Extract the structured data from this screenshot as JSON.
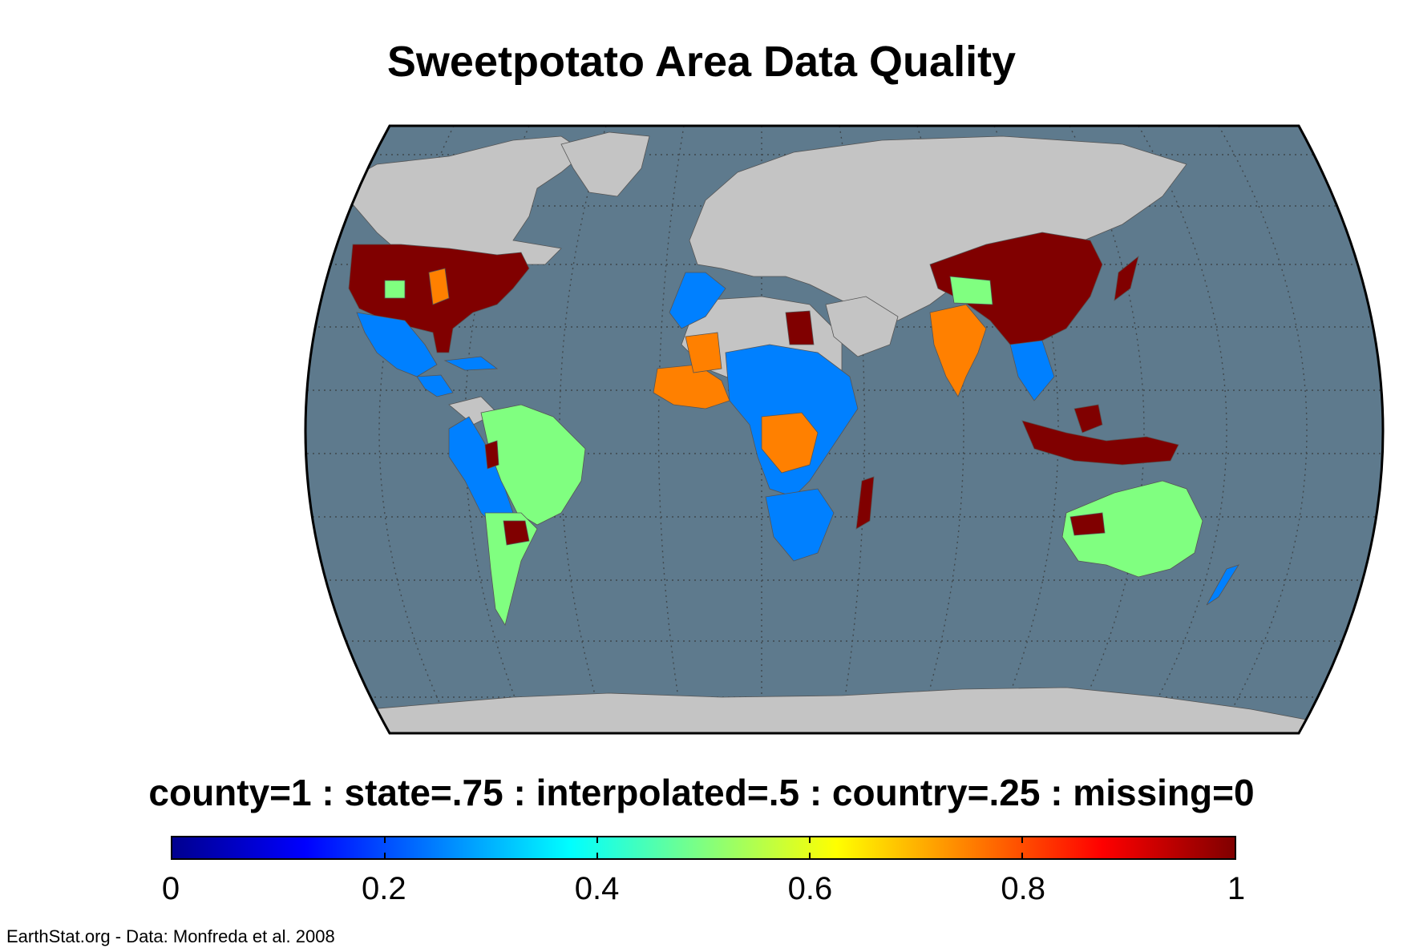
{
  "title": "Sweetpotato Area Data Quality",
  "legend": {
    "caption": "county=1 : state=.75 : interpolated=.5 : country=.25 : missing=0",
    "ticks": [
      "0",
      "0.2",
      "0.4",
      "0.6",
      "0.8",
      "1"
    ],
    "range": [
      0,
      1
    ],
    "colormap": "jet"
  },
  "credit": "EarthStat.org - Data: Monfreda et al. 2008",
  "colors": {
    "ocean": "#5e7a8d",
    "land_no_data": "#c4c4c4",
    "county": "#800000",
    "state": "#ff8000",
    "interpolated": "#80ff80",
    "country": "#0080ff"
  },
  "regions": [
    {
      "name": "alaska",
      "value": 1
    },
    {
      "name": "canada",
      "value": null
    },
    {
      "name": "greenland",
      "value": null
    },
    {
      "name": "usa",
      "value": 1
    },
    {
      "name": "mexico",
      "value": 0.25
    },
    {
      "name": "central-america",
      "value": 0.25
    },
    {
      "name": "caribbean",
      "value": 0.25
    },
    {
      "name": "brazil",
      "value": 0.5
    },
    {
      "name": "andes",
      "value": 0.25
    },
    {
      "name": "argentina",
      "value": 0.5
    },
    {
      "name": "europe",
      "value": null
    },
    {
      "name": "russia",
      "value": null
    },
    {
      "name": "north-africa",
      "value": 0.25
    },
    {
      "name": "sahara",
      "value": null
    },
    {
      "name": "egypt",
      "value": 1
    },
    {
      "name": "west-africa",
      "value": 0.75
    },
    {
      "name": "central-east-africa",
      "value": 0.25
    },
    {
      "name": "congo",
      "value": 0.75
    },
    {
      "name": "southern-africa",
      "value": 0.25
    },
    {
      "name": "madagascar",
      "value": 1
    },
    {
      "name": "middle-east",
      "value": null
    },
    {
      "name": "india",
      "value": 0.75
    },
    {
      "name": "china",
      "value": 1
    },
    {
      "name": "japan",
      "value": 1
    },
    {
      "name": "southeast-asia",
      "value": 0.25
    },
    {
      "name": "indonesia",
      "value": 1
    },
    {
      "name": "australia",
      "value": 0.5
    },
    {
      "name": "new-zealand",
      "value": 0.25
    },
    {
      "name": "antarctica",
      "value": null
    }
  ]
}
